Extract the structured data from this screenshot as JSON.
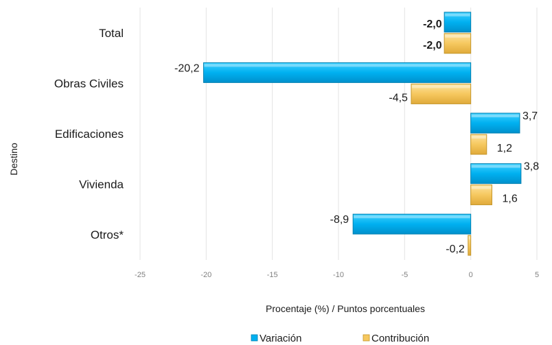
{
  "chart_data": {
    "type": "bar",
    "orientation": "horizontal",
    "categories": [
      "Total",
      "Obras Civiles",
      "Edificaciones",
      "Vivienda",
      "Otros*"
    ],
    "series": [
      {
        "name": "Variación",
        "values": [
          -2.0,
          -20.2,
          3.7,
          3.8,
          -8.9
        ],
        "labels": [
          "-2,0",
          "-20,2",
          "3,7",
          "3,8",
          "-8,9"
        ],
        "color": "#00b0f0"
      },
      {
        "name": "Contribución",
        "values": [
          -2.0,
          -4.5,
          1.2,
          1.6,
          -0.2
        ],
        "labels": [
          "-2,0",
          "-4,5",
          "1,2",
          "1,6",
          "-0,2"
        ],
        "color": "#f6c85f"
      }
    ],
    "bold_label_categories": [
      "Total"
    ],
    "xlabel": "Procentaje (%) / Puntos porcentuales",
    "ylabel": "Destino",
    "xlim": [
      -25,
      5
    ],
    "xticks": [
      "-25",
      "-20",
      "-15",
      "-10",
      "-5",
      "0",
      "5"
    ],
    "xtick_values": [
      -25,
      -20,
      -15,
      -10,
      -5,
      0,
      5
    ],
    "grid": "vertical",
    "legend_position": "bottom"
  }
}
